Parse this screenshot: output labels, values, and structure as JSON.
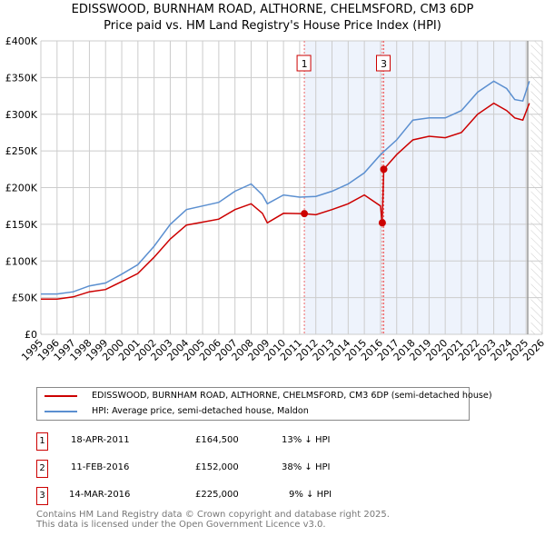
{
  "chart_data": {
    "type": "line",
    "title": "EDISSWOOD, BURNHAM ROAD, ALTHORNE, CHELMSFORD, CM3 6DP",
    "subtitle": "Price paid vs. HM Land Registry's House Price Index (HPI)",
    "xlim": [
      1995,
      2026
    ],
    "ylim": [
      0,
      400000
    ],
    "x_ticks": [
      "1995",
      "1996",
      "1997",
      "1998",
      "1999",
      "2000",
      "2001",
      "2002",
      "2003",
      "2004",
      "2005",
      "2006",
      "2007",
      "2008",
      "2009",
      "2010",
      "2011",
      "2012",
      "2013",
      "2014",
      "2015",
      "2016",
      "2017",
      "2018",
      "2019",
      "2020",
      "2021",
      "2022",
      "2023",
      "2024",
      "2025",
      "2026"
    ],
    "y_ticks": [
      "£0",
      "£50K",
      "£100K",
      "£150K",
      "£200K",
      "£250K",
      "£300K",
      "£350K",
      "£400K"
    ],
    "series": [
      {
        "name": "EDISSWOOD, BURNHAM ROAD, ALTHORNE, CHELMSFORD, CM3 6DP (semi-detached house)",
        "color": "#cc0000",
        "x": [
          1995,
          1996,
          1997,
          1998,
          1999,
          2000,
          2001,
          2002,
          2003,
          2004,
          2005,
          2006,
          2007,
          2008,
          2008.7,
          2009,
          2010,
          2011.3,
          2012,
          2013,
          2014,
          2015,
          2016.0,
          2016.1,
          2016.2,
          2017,
          2018,
          2019,
          2020,
          2021,
          2022,
          2023,
          2023.8,
          2024.3,
          2024.8,
          2025.2
        ],
        "values": [
          48000,
          48000,
          51000,
          58000,
          61000,
          72000,
          83000,
          105000,
          130000,
          149000,
          153000,
          157000,
          170000,
          178000,
          165000,
          152000,
          165000,
          164500,
          163000,
          170000,
          178000,
          190000,
          175000,
          152000,
          225000,
          245000,
          265000,
          270000,
          268000,
          275000,
          300000,
          315000,
          305000,
          295000,
          292000,
          315000
        ]
      },
      {
        "name": "HPI: Average price, semi-detached house, Maldon",
        "color": "#5b8fd0",
        "x": [
          1995,
          1996,
          1997,
          1998,
          1999,
          2000,
          2001,
          2002,
          2003,
          2004,
          2005,
          2006,
          2007,
          2008,
          2008.7,
          2009,
          2010,
          2011,
          2012,
          2013,
          2014,
          2015,
          2016,
          2017,
          2018,
          2019,
          2020,
          2021,
          2022,
          2023,
          2023.8,
          2024.3,
          2024.8,
          2025.2
        ],
        "values": [
          55000,
          55000,
          58000,
          66000,
          70000,
          82000,
          95000,
          120000,
          150000,
          170000,
          175000,
          180000,
          195000,
          205000,
          190000,
          178000,
          190000,
          187000,
          188000,
          195000,
          205000,
          220000,
          245000,
          265000,
          292000,
          295000,
          295000,
          305000,
          330000,
          345000,
          335000,
          320000,
          318000,
          345000
        ]
      }
    ],
    "sales": [
      {
        "label": "1",
        "x": 2011.29,
        "value": 164500
      },
      {
        "label": "2",
        "x": 2016.11,
        "value": 152000
      },
      {
        "label": "3",
        "x": 2016.2,
        "value": 225000
      }
    ],
    "shaded_range": [
      2011.29,
      2025.0
    ],
    "hatched_from": 2025.3
  },
  "legend": {
    "red": "EDISSWOOD, BURNHAM ROAD, ALTHORNE, CHELMSFORD, CM3 6DP (semi-detached house)",
    "blue": "HPI: Average price, semi-detached house, Maldon"
  },
  "transactions": [
    {
      "n": "1",
      "date": "18-APR-2011",
      "price": "£164,500",
      "hpi": "13% ↓ HPI"
    },
    {
      "n": "2",
      "date": "11-FEB-2016",
      "price": "£152,000",
      "hpi": "38% ↓ HPI"
    },
    {
      "n": "3",
      "date": "14-MAR-2016",
      "price": "£225,000",
      "hpi": "9% ↓ HPI"
    }
  ],
  "footer": [
    "Contains HM Land Registry data © Crown copyright and database right 2025.",
    "This data is licensed under the Open Government Licence v3.0."
  ]
}
